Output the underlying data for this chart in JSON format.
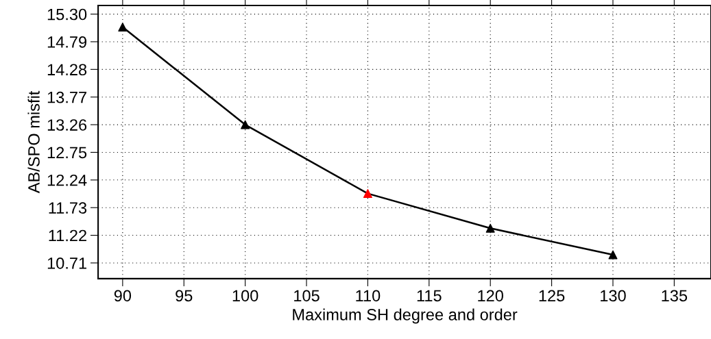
{
  "chart_data": {
    "type": "line",
    "xlabel": "Maximum SH degree and order",
    "ylabel": "AB/SPO misfit",
    "x": [
      90,
      100,
      110,
      120,
      130
    ],
    "series": [
      {
        "color": "#000000",
        "colors": [
          "#000000",
          "#000000",
          "#ff0000",
          "#000000",
          "#000000"
        ],
        "values": [
          15.06,
          13.26,
          11.99,
          11.35,
          10.86
        ]
      }
    ],
    "xlim": [
      88,
      138
    ],
    "xticks": [
      90,
      95,
      100,
      105,
      110,
      115,
      120,
      125,
      130,
      135
    ],
    "ylim": [
      10.42,
      15.46
    ],
    "yticks": [
      {
        "value": 15.3,
        "label": "15.30"
      },
      14.79,
      14.28,
      13.77,
      13.26,
      12.75,
      12.24,
      11.73,
      11.22,
      10.71
    ],
    "grid": true,
    "marker": "triangle",
    "line_style": "solid"
  }
}
